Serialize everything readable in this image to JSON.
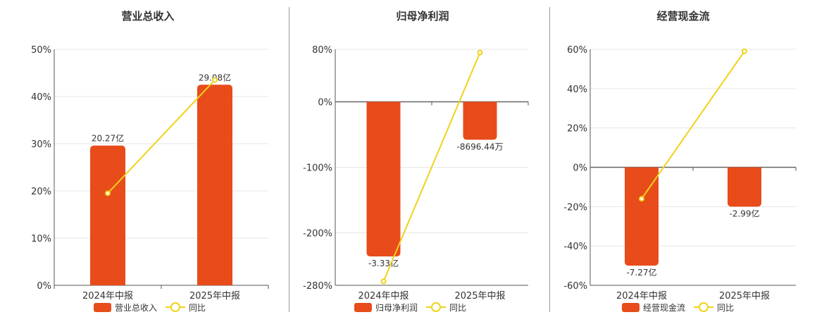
{
  "colors": {
    "bar": "#e84c1b",
    "line": "#f0d21a",
    "axis": "#555555",
    "grid": "#e6e6e6",
    "zero_line": "#666666"
  },
  "chart_data": [
    {
      "type": "bar",
      "title": "营业总收入",
      "categories": [
        "2024年中报",
        "2025年中报"
      ],
      "series": [
        {
          "name": "营业总收入",
          "type": "bar",
          "values": [
            20.27,
            29.08
          ],
          "display_values": [
            "20.27亿",
            "29.08亿"
          ]
        },
        {
          "name": "同比",
          "type": "line",
          "values": [
            19.5,
            43.5
          ]
        }
      ],
      "y_axis": {
        "ticks": [
          "50%",
          "40%",
          "30%",
          "20%",
          "10%",
          "0%"
        ],
        "tick_values": [
          50,
          40,
          30,
          20,
          10,
          0
        ],
        "range": [
          0,
          50
        ]
      },
      "bar_percent_values": [
        29.6,
        42.5
      ],
      "legend": [
        "营业总收入",
        "同比"
      ],
      "legend_position": "bottom",
      "grid": true
    },
    {
      "type": "bar",
      "title": "归母净利润",
      "categories": [
        "2024年中报",
        "2025年中报"
      ],
      "series": [
        {
          "name": "归母净利润",
          "type": "bar",
          "values": [
            -3.33,
            -0.869644
          ],
          "display_values": [
            "-3.33亿",
            "-8696.44万"
          ]
        },
        {
          "name": "同比",
          "type": "line",
          "values": [
            -274,
            75
          ]
        }
      ],
      "y_axis": {
        "ticks": [
          "80%",
          "0%",
          "-100%",
          "-200%",
          "-280%"
        ],
        "tick_values": [
          80,
          0,
          -100,
          -200,
          -280
        ],
        "range": [
          -280,
          80
        ]
      },
      "bar_percent_values": [
        -236,
        -58
      ],
      "legend": [
        "归母净利润",
        "同比"
      ],
      "legend_position": "bottom",
      "grid": true
    },
    {
      "type": "bar",
      "title": "经营现金流",
      "categories": [
        "2024年中报",
        "2025年中报"
      ],
      "series": [
        {
          "name": "经营现金流",
          "type": "bar",
          "values": [
            -7.27,
            -2.99
          ],
          "display_values": [
            "-7.27亿",
            "-2.99亿"
          ]
        },
        {
          "name": "同比",
          "type": "line",
          "values": [
            -16,
            59
          ]
        }
      ],
      "y_axis": {
        "ticks": [
          "60%",
          "40%",
          "20%",
          "0%",
          "-20%",
          "-40%",
          "-60%"
        ],
        "tick_values": [
          60,
          40,
          20,
          0,
          -20,
          -40,
          -60
        ],
        "range": [
          -60,
          60
        ]
      },
      "bar_percent_values": [
        -50,
        -20
      ],
      "legend": [
        "经营现金流",
        "同比"
      ],
      "legend_position": "bottom",
      "grid": true
    }
  ]
}
